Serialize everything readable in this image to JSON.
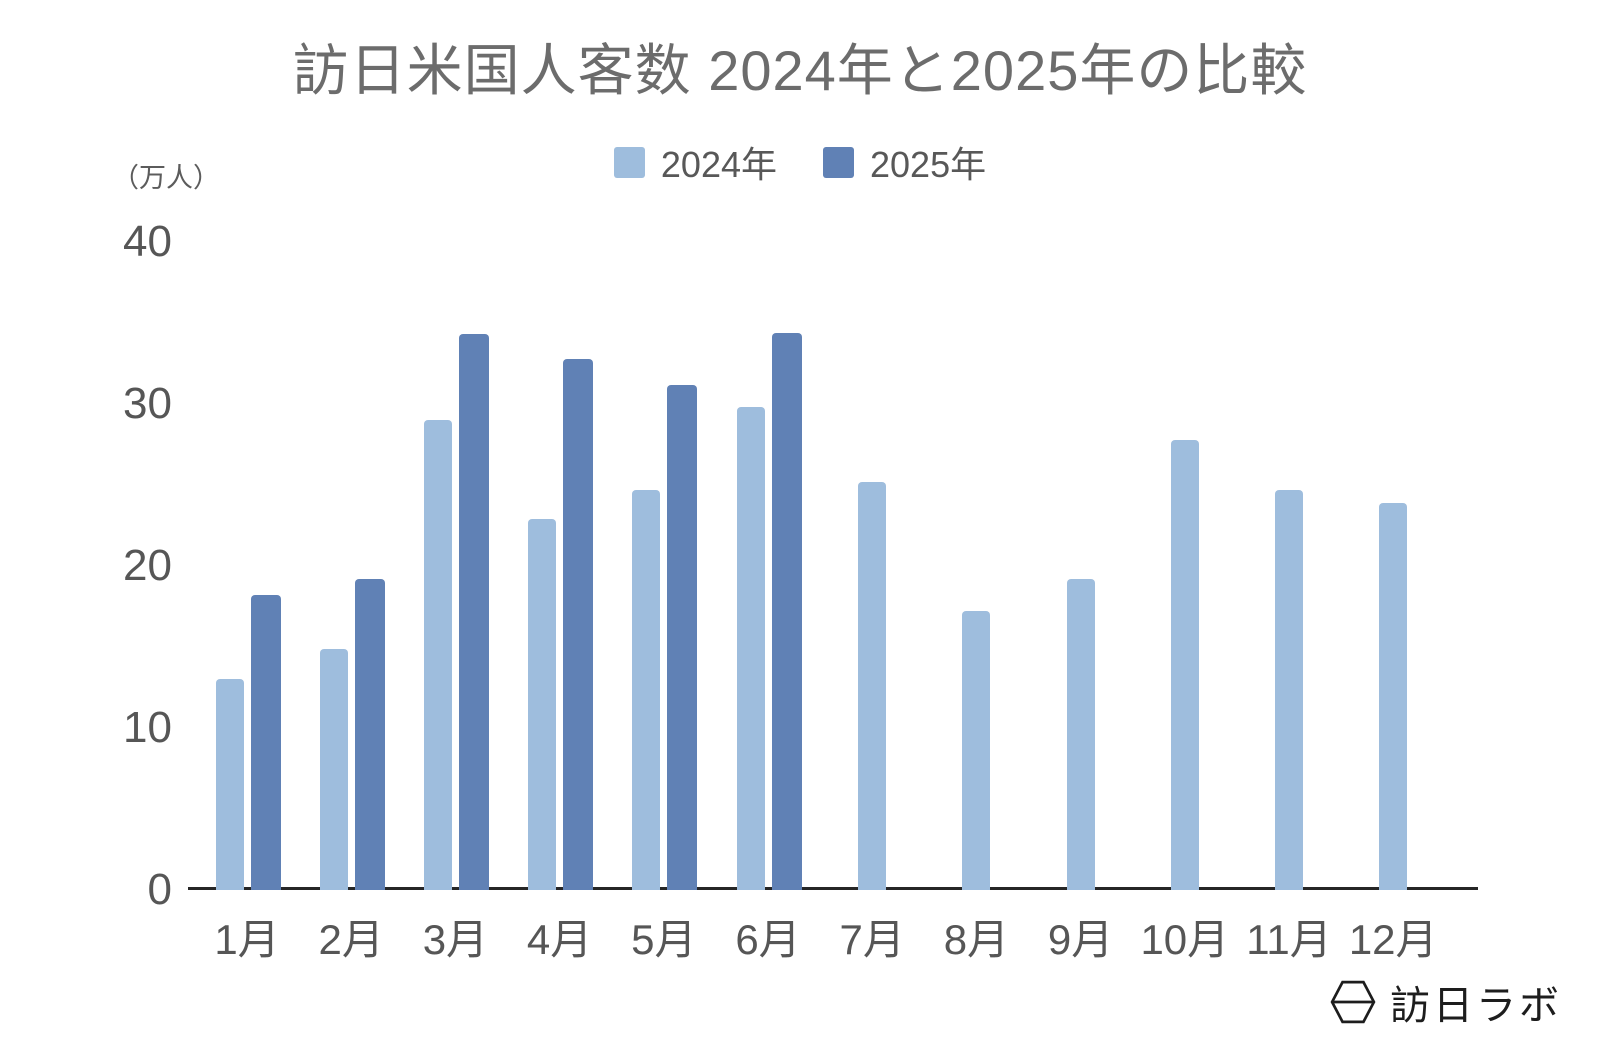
{
  "title": "訪日米国人客数 2024年と2025年の比較",
  "y_axis": {
    "unit_label": "（万人）",
    "ticks": [
      0,
      10,
      20,
      30,
      40
    ]
  },
  "legend": {
    "position": "top-center",
    "items": [
      {
        "label": "2024年",
        "color": "#9EBDDD"
      },
      {
        "label": "2025年",
        "color": "#6081B5"
      }
    ]
  },
  "brand": {
    "logo_icon": "hexagon-logo-icon",
    "text": "訪日ラボ"
  },
  "colors": {
    "background": "#FFFFFF",
    "axis": "#262626",
    "title_text": "#6C6C6C",
    "tick_text": "#565656"
  },
  "chart_data": {
    "type": "bar",
    "title": "訪日米国人客数 2024年と2025年の比較",
    "categories": [
      "1月",
      "2月",
      "3月",
      "4月",
      "5月",
      "6月",
      "7月",
      "8月",
      "9月",
      "10月",
      "11月",
      "12月"
    ],
    "series": [
      {
        "name": "2024年",
        "color": "#9EBDDD",
        "values": [
          13.0,
          14.9,
          29.0,
          22.9,
          24.7,
          29.8,
          25.2,
          17.2,
          19.2,
          27.8,
          24.7,
          23.9
        ]
      },
      {
        "name": "2025年",
        "color": "#6081B5",
        "values": [
          18.2,
          19.2,
          34.3,
          32.8,
          31.2,
          34.4,
          null,
          null,
          null,
          null,
          null,
          null
        ]
      }
    ],
    "xlabel": "",
    "ylabel": "（万人）",
    "ylim": [
      0,
      40
    ],
    "yticks": [
      0,
      10,
      20,
      30,
      40
    ],
    "grid": false,
    "legend_position": "top"
  }
}
